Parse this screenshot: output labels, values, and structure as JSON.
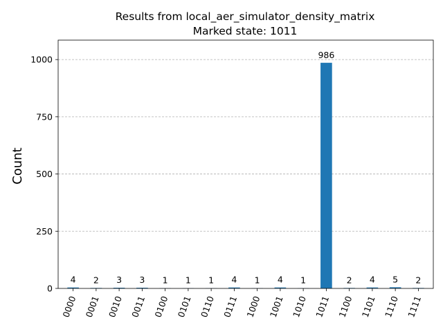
{
  "chart_data": {
    "type": "bar",
    "title": "Results from local_aer_simulator_density_matrix",
    "subtitle": "Marked state: 1011",
    "xlabel": "",
    "ylabel": "Count",
    "categories": [
      "0000",
      "0001",
      "0010",
      "0011",
      "0100",
      "0101",
      "0110",
      "0111",
      "1000",
      "1001",
      "1010",
      "1011",
      "1100",
      "1101",
      "1110",
      "1111"
    ],
    "values": [
      4,
      2,
      3,
      3,
      1,
      1,
      1,
      4,
      1,
      4,
      1,
      986,
      2,
      4,
      5,
      2
    ],
    "yticks": [
      0,
      250,
      500,
      750,
      1000
    ],
    "ylim": [
      0,
      1085
    ],
    "grid": "y, dashed",
    "bar_color": "#1f77b4",
    "grid_color": "#b0b0b0"
  }
}
